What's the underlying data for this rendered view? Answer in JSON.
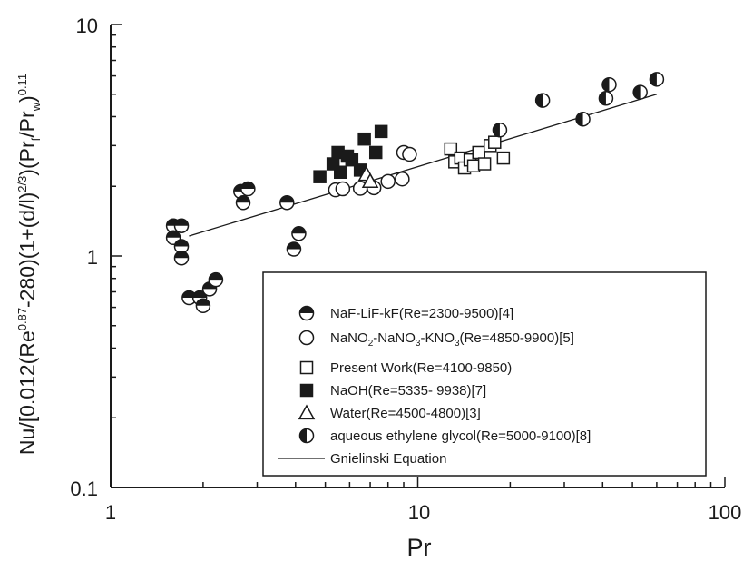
{
  "chart_data": {
    "type": "scatter",
    "x_scale": "log",
    "y_scale": "log",
    "xlim": [
      1,
      100
    ],
    "ylim": [
      0.1,
      10
    ],
    "xlabel": "Pr",
    "ylabel_parts": [
      "Nu/[0.012(Re",
      "0.87",
      "-280)(1+(d/l)",
      "2/3",
      ")(Pr",
      "f",
      "/Pr",
      "w",
      ")",
      "0.11"
    ],
    "x_ticks": [
      1,
      10,
      100
    ],
    "x_tick_labels": [
      "1",
      "10",
      "100"
    ],
    "y_ticks": [
      0.1,
      1,
      10
    ],
    "y_tick_labels": [
      "0.1",
      "1",
      "10"
    ],
    "legend_position": "bottom-right",
    "series": [
      {
        "name": "NaF-LiF-kF(Re=2300-9500)[4]",
        "marker": "circle-half-top",
        "points": [
          [
            1.6,
            1.35
          ],
          [
            1.6,
            1.2
          ],
          [
            1.7,
            1.35
          ],
          [
            1.7,
            1.1
          ],
          [
            1.7,
            0.98
          ],
          [
            1.8,
            0.66
          ],
          [
            1.95,
            0.66
          ],
          [
            2.0,
            0.61
          ],
          [
            2.1,
            0.72
          ],
          [
            2.2,
            0.79
          ],
          [
            2.65,
            1.9
          ],
          [
            2.7,
            1.7
          ],
          [
            2.8,
            1.95
          ],
          [
            3.75,
            1.7
          ],
          [
            3.95,
            1.07
          ],
          [
            4.1,
            1.25
          ]
        ]
      },
      {
        "name": "NaNO2-NaNO3-KNO3(Re=4850-9900)[5]",
        "legend_parts": [
          "NaNO",
          "2",
          "-NaNO",
          "3",
          "-KNO",
          "3",
          "(Re=4850-9900)[5]"
        ],
        "marker": "circle-open",
        "points": [
          [
            5.4,
            1.93
          ],
          [
            5.7,
            1.95
          ],
          [
            6.5,
            1.96
          ],
          [
            7.2,
            1.97
          ],
          [
            8.0,
            2.1
          ],
          [
            8.9,
            2.15
          ],
          [
            9.0,
            2.8
          ],
          [
            9.4,
            2.75
          ]
        ]
      },
      {
        "name": "Present Work(Re=4100-9850)",
        "marker": "square-open",
        "points": [
          [
            12.8,
            2.9
          ],
          [
            13.2,
            2.55
          ],
          [
            13.8,
            2.65
          ],
          [
            14.2,
            2.4
          ],
          [
            14.8,
            2.6
          ],
          [
            15.2,
            2.45
          ],
          [
            15.8,
            2.8
          ],
          [
            16.5,
            2.5
          ],
          [
            17.2,
            3.0
          ],
          [
            17.8,
            3.1
          ],
          [
            19.0,
            2.65
          ]
        ]
      },
      {
        "name": "NaOH(Re=5335- 9938)[7]",
        "marker": "square-filled",
        "points": [
          [
            4.8,
            2.2
          ],
          [
            5.3,
            2.5
          ],
          [
            5.5,
            2.8
          ],
          [
            5.6,
            2.3
          ],
          [
            5.9,
            2.7
          ],
          [
            6.1,
            2.6
          ],
          [
            6.5,
            2.35
          ],
          [
            6.7,
            3.2
          ],
          [
            7.3,
            2.8
          ],
          [
            7.6,
            3.45
          ]
        ]
      },
      {
        "name": "Water(Re=4500-4800)[3]",
        "marker": "triangle-open",
        "points": [
          [
            6.8,
            2.25
          ],
          [
            7.0,
            2.1
          ]
        ]
      },
      {
        "name": "aqueous ethylene glycol(Re=5000-9100)[8]",
        "marker": "circle-half-left",
        "points": [
          [
            18.5,
            3.5
          ],
          [
            25.5,
            4.7
          ],
          [
            34.5,
            3.9
          ],
          [
            41.0,
            4.8
          ],
          [
            42.0,
            5.5
          ],
          [
            53.0,
            5.1
          ],
          [
            60.0,
            5.8
          ]
        ]
      }
    ],
    "lines": [
      {
        "name": "Gnielinski Equation",
        "points": [
          [
            1.8,
            1.22
          ],
          [
            60,
            5.0
          ]
        ]
      }
    ]
  }
}
